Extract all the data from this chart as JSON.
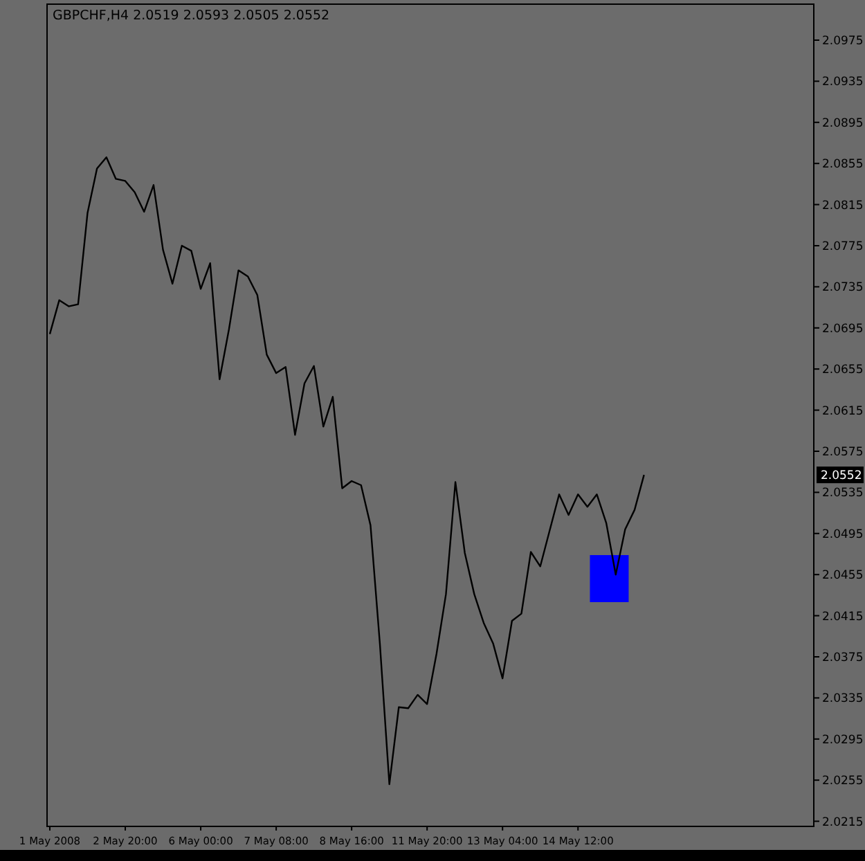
{
  "chart_data": {
    "type": "line",
    "title": "GBPCHF,H4 2.0519 2.0593 2.0505 2.0552",
    "categories": [
      "1 May 2008",
      null,
      null,
      null,
      null,
      null,
      null,
      null,
      "2 May 20:00",
      null,
      null,
      null,
      null,
      null,
      null,
      null,
      "6 May 00:00",
      null,
      null,
      null,
      null,
      null,
      null,
      null,
      "7 May 08:00",
      null,
      null,
      null,
      null,
      null,
      null,
      null,
      "8 May 16:00",
      null,
      null,
      null,
      null,
      null,
      null,
      null,
      "11 May 20:00",
      null,
      null,
      null,
      null,
      null,
      null,
      null,
      "13 May 04:00",
      null,
      null,
      null,
      null,
      null,
      null,
      null,
      "14 May 12:00",
      null,
      null,
      null,
      null,
      null,
      null,
      null,
      null,
      null,
      null,
      null,
      null,
      null,
      null,
      null,
      null,
      null,
      null,
      null,
      null,
      null,
      null,
      null,
      null,
      null
    ],
    "series": [
      {
        "color": "#000000",
        "values": [
          2.0689,
          2.0722,
          2.0716,
          2.0718,
          2.0807,
          2.085,
          2.0861,
          2.084,
          2.0838,
          2.0827,
          2.0808,
          2.0834,
          2.0771,
          2.0738,
          2.0775,
          2.077,
          2.0733,
          2.0758,
          2.0645,
          2.0694,
          2.0751,
          2.0745,
          2.0727,
          2.0669,
          2.0651,
          2.0657,
          2.0591,
          2.0641,
          2.0658,
          2.0599,
          2.0628,
          2.0539,
          2.0546,
          2.0542,
          2.0503,
          2.0387,
          2.0251,
          2.0326,
          2.0325,
          2.0338,
          2.0329,
          2.0378,
          2.0436,
          2.0545,
          2.0476,
          2.0436,
          2.0408,
          2.0388,
          2.0354,
          2.041,
          2.0417,
          2.0477,
          2.0463,
          2.0498,
          2.0533,
          2.0513,
          2.0533,
          2.0521,
          2.0533,
          2.0505,
          2.0455,
          2.0499,
          2.0518,
          2.0552,
          null,
          null,
          null,
          null,
          null,
          null,
          null,
          null,
          null,
          null,
          null,
          null,
          null,
          null,
          null,
          null,
          null,
          null
        ]
      }
    ],
    "ylim": [
      2.021,
      2.101
    ],
    "yticks": [
      2.0215,
      2.0255,
      2.0295,
      2.0335,
      2.0375,
      2.0415,
      2.0455,
      2.0495,
      2.0535,
      2.0575,
      2.0615,
      2.0655,
      2.0695,
      2.0735,
      2.0775,
      2.0815,
      2.0855,
      2.0895,
      2.0935,
      2.0975
    ],
    "annotations": [
      {
        "text": "2.0552",
        "y": 2.0552
      }
    ],
    "grid": false,
    "marker": "none",
    "line_style": "solid"
  }
}
